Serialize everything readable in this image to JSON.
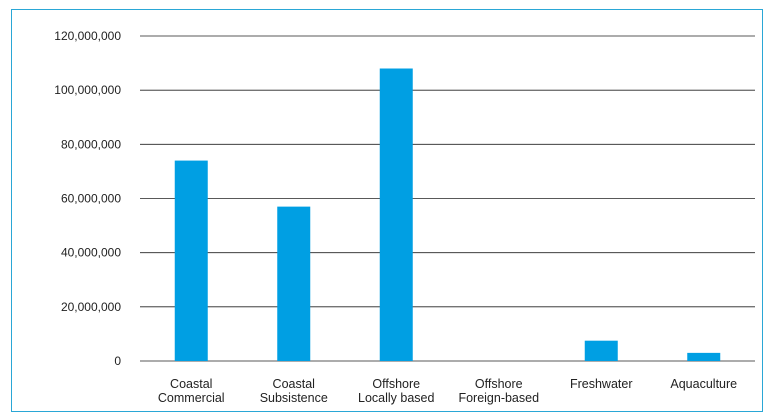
{
  "chart_data": {
    "type": "bar",
    "title": "",
    "xlabel": "",
    "ylabel": "",
    "categories": [
      [
        "Coastal",
        "Commercial"
      ],
      [
        "Coastal",
        "Subsistence"
      ],
      [
        "Offshore",
        "Locally based"
      ],
      [
        "Offshore",
        "Foreign-based"
      ],
      [
        "Freshwater"
      ],
      [
        "Aquaculture"
      ]
    ],
    "values": [
      74000000,
      57000000,
      108000000,
      0,
      7500000,
      3000000
    ],
    "ylim": [
      0,
      120000000
    ],
    "yticks": [
      0,
      20000000,
      40000000,
      60000000,
      80000000,
      100000000,
      120000000
    ],
    "ytick_labels": [
      "0",
      "20,000,000",
      "40,000,000",
      "60,000,000",
      "80,000,000",
      "100,000,000",
      "120,000,000"
    ],
    "grid": true,
    "legend": "none",
    "colors": {
      "bar": "#009fe3",
      "gridline": "#222222",
      "frame": "#2aa7d6"
    }
  }
}
